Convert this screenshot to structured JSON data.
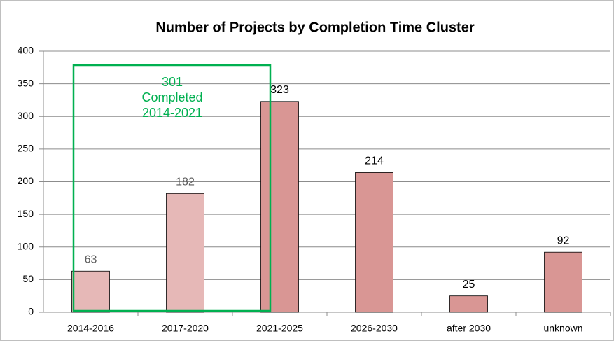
{
  "chart_data": {
    "type": "bar",
    "title": "Number of Projects by Completion Time Cluster",
    "categories": [
      "2014-2016",
      "2017-2020",
      "2021-2025",
      "2026-2030",
      "after 2030",
      "unknown"
    ],
    "values": [
      63,
      182,
      323,
      214,
      25,
      92
    ],
    "colors": [
      "#e6b8b7",
      "#e6b8b7",
      "#d99694",
      "#d99694",
      "#d99694",
      "#d99694"
    ],
    "label_colors": [
      "#595959",
      "#595959",
      "#000000",
      "#000000",
      "#000000",
      "#000000"
    ],
    "ylim": [
      0,
      400
    ],
    "yticks": [
      0,
      50,
      100,
      150,
      200,
      250,
      300,
      350,
      400
    ],
    "grid": true,
    "annotation": {
      "lines": [
        "301",
        "Completed",
        "2014-2021"
      ],
      "color": "#00b050"
    }
  }
}
